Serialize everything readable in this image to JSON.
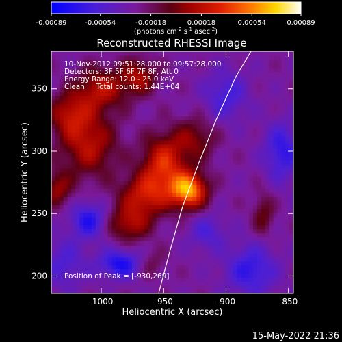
{
  "chart_data": {
    "type": "heatmap",
    "title": "Reconstructed RHESSI Image",
    "xlabel": "Heliocentric X (arcsec)",
    "ylabel": "Heliocentric Y (arcsec)",
    "xlim": [
      -1040,
      -846
    ],
    "ylim": [
      186,
      380
    ],
    "x_ticks": [
      -1000,
      -950,
      -900,
      -850
    ],
    "x_tick_labels": [
      "-1000",
      "-950",
      "-900",
      "-850"
    ],
    "y_ticks": [
      200,
      250,
      300,
      350
    ],
    "y_tick_labels": [
      "200",
      "250",
      "300",
      "350"
    ],
    "colorbar": {
      "range": [
        -0.00089,
        0.00089
      ],
      "ticks": [
        -0.00089,
        -0.00054,
        -0.00018,
        0.00018,
        0.00054,
        0.00089
      ],
      "tick_labels": [
        "-0.00089",
        "-0.00054",
        "-0.00018",
        "0.00018",
        "0.00054",
        "0.00089"
      ],
      "unit_label": "(photons cm",
      "unit_parts": [
        "(photons cm",
        "-2",
        " s",
        "-1",
        " asec",
        "-2",
        ")"
      ],
      "colormap": "blue-purple-red-yellow-white"
    },
    "annotations": [
      "10-Nov-2012 09:51:28.000 to 09:57:28.000",
      "Detectors: 3F 5F 6F 7F 8F, Att 0",
      "Energy Range: 12.0 - 25.0 keV",
      "Clean     Total counts: 1.44E+04"
    ],
    "peak_label": "Position of Peak = [-930,269]",
    "peak": [
      -930,
      269
    ],
    "limb_curve": [
      [
        -954,
        186
      ],
      [
        -945,
        220
      ],
      [
        -935,
        255
      ],
      [
        -922,
        290
      ],
      [
        -908,
        325
      ],
      [
        -892,
        360
      ],
      [
        -880,
        380
      ]
    ],
    "blobs": [
      {
        "x": -930,
        "y": 269,
        "sx": 10,
        "sy": 10,
        "amp": 1.0
      },
      {
        "x": -950,
        "y": 290,
        "sx": 12,
        "sy": 16,
        "amp": 0.65
      },
      {
        "x": -965,
        "y": 265,
        "sx": 14,
        "sy": 12,
        "amp": 0.55
      },
      {
        "x": -978,
        "y": 242,
        "sx": 12,
        "sy": 10,
        "amp": 0.45
      },
      {
        "x": -1010,
        "y": 305,
        "sx": 16,
        "sy": 18,
        "amp": 0.5
      },
      {
        "x": -1025,
        "y": 330,
        "sx": 12,
        "sy": 12,
        "amp": 0.45
      },
      {
        "x": -1000,
        "y": 350,
        "sx": 14,
        "sy": 12,
        "amp": 0.5
      },
      {
        "x": -970,
        "y": 360,
        "sx": 10,
        "sy": 10,
        "amp": 0.45
      },
      {
        "x": -925,
        "y": 310,
        "sx": 12,
        "sy": 12,
        "amp": 0.35
      },
      {
        "x": -1035,
        "y": 270,
        "sx": 8,
        "sy": 10,
        "amp": 0.4
      },
      {
        "x": -870,
        "y": 250,
        "sx": 6,
        "sy": 12,
        "amp": 0.3
      },
      {
        "x": -960,
        "y": 210,
        "sx": 8,
        "sy": 8,
        "amp": 0.2
      },
      {
        "x": -1010,
        "y": 245,
        "sx": 10,
        "sy": 10,
        "amp": -0.5
      },
      {
        "x": -985,
        "y": 210,
        "sx": 12,
        "sy": 8,
        "amp": -0.55
      },
      {
        "x": -880,
        "y": 205,
        "sx": 14,
        "sy": 14,
        "amp": -0.45
      },
      {
        "x": -900,
        "y": 345,
        "sx": 12,
        "sy": 14,
        "amp": -0.35
      },
      {
        "x": -855,
        "y": 300,
        "sx": 10,
        "sy": 16,
        "amp": -0.45
      },
      {
        "x": -1030,
        "y": 210,
        "sx": 12,
        "sy": 14,
        "amp": -0.3
      },
      {
        "x": -915,
        "y": 235,
        "sx": 10,
        "sy": 10,
        "amp": -0.3
      }
    ]
  },
  "footer": {
    "timestamp": "15-May-2022 21:36"
  }
}
